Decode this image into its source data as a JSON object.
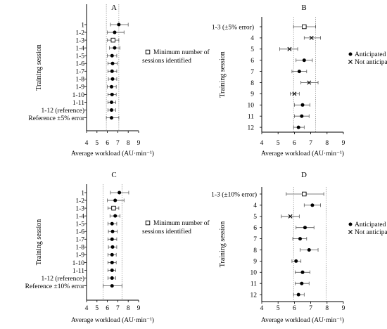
{
  "chart_data": [
    {
      "panel_label": "A",
      "type": "scatter",
      "xlabel": "Average workload (AU·min⁻¹)",
      "ylabel": "Training session",
      "xlim": [
        4,
        9
      ],
      "xticks": [
        "4",
        "5",
        "6",
        "7",
        "8",
        "9"
      ],
      "reference_band": [
        5.9,
        7.1
      ],
      "legend": [
        {
          "marker": "square",
          "label": "Minimum number of sessions identified"
        }
      ],
      "rows": [
        {
          "label": "1",
          "marker": "circle",
          "mean": 7.1,
          "lo": 6.3,
          "hi": 8.0
        },
        {
          "label": "1-2",
          "marker": "circle",
          "mean": 6.7,
          "lo": 6.0,
          "hi": 7.6
        },
        {
          "label": "1-3",
          "marker": "square",
          "mean": 6.55,
          "lo": 6.0,
          "hi": 7.1
        },
        {
          "label": "1-4",
          "marker": "circle",
          "mean": 6.7,
          "lo": 6.2,
          "hi": 7.2
        },
        {
          "label": "1-5",
          "marker": "circle",
          "mean": 6.45,
          "lo": 6.0,
          "hi": 6.9
        },
        {
          "label": "1-6",
          "marker": "circle",
          "mean": 6.5,
          "lo": 6.05,
          "hi": 6.95
        },
        {
          "label": "1-7",
          "marker": "circle",
          "mean": 6.45,
          "lo": 6.05,
          "hi": 6.9
        },
        {
          "label": "1-8",
          "marker": "circle",
          "mean": 6.5,
          "lo": 6.1,
          "hi": 6.9
        },
        {
          "label": "1-9",
          "marker": "circle",
          "mean": 6.4,
          "lo": 6.0,
          "hi": 6.85
        },
        {
          "label": "1-10",
          "marker": "circle",
          "mean": 6.45,
          "lo": 6.05,
          "hi": 6.85
        },
        {
          "label": "1-11",
          "marker": "circle",
          "mean": 6.4,
          "lo": 6.05,
          "hi": 6.8
        },
        {
          "label": "1-12 (reference)",
          "marker": "circle",
          "mean": 6.4,
          "lo": 6.05,
          "hi": 6.8
        },
        {
          "label": "Reference ±5% error",
          "marker": "circle",
          "mean": 6.4,
          "lo": 5.9,
          "hi": 7.1
        }
      ]
    },
    {
      "panel_label": "B",
      "type": "scatter",
      "xlabel": "Average workload (AU·min⁻¹)",
      "ylabel": "Training session",
      "xlim": [
        4,
        9
      ],
      "xticks": [
        "4",
        "5",
        "6",
        "7",
        "8",
        "9"
      ],
      "reference_band": [
        5.95,
        7.3
      ],
      "legend": [
        {
          "marker": "circle",
          "label": "Anticipated"
        },
        {
          "marker": "cross",
          "label": "Not anticipated"
        }
      ],
      "rows": [
        {
          "label": "1-3 (±5% error)",
          "marker": "square",
          "mean": 6.6,
          "lo": 5.95,
          "hi": 7.3
        },
        {
          "label": "4",
          "marker": "cross",
          "mean": 7.05,
          "lo": 6.6,
          "hi": 7.6
        },
        {
          "label": "5",
          "marker": "cross",
          "mean": 5.7,
          "lo": 5.1,
          "hi": 6.2
        },
        {
          "label": "6",
          "marker": "circle",
          "mean": 6.6,
          "lo": 6.1,
          "hi": 7.1
        },
        {
          "label": "7",
          "marker": "circle",
          "mean": 6.3,
          "lo": 5.85,
          "hi": 6.75
        },
        {
          "label": "8",
          "marker": "cross",
          "mean": 6.9,
          "lo": 6.4,
          "hi": 7.45
        },
        {
          "label": "9",
          "marker": "cross",
          "mean": 6.0,
          "lo": 5.75,
          "hi": 6.3
        },
        {
          "label": "10",
          "marker": "circle",
          "mean": 6.5,
          "lo": 6.0,
          "hi": 6.95
        },
        {
          "label": "11",
          "marker": "circle",
          "mean": 6.45,
          "lo": 6.0,
          "hi": 6.9
        },
        {
          "label": "12",
          "marker": "circle",
          "mean": 6.25,
          "lo": 5.95,
          "hi": 6.6
        }
      ]
    },
    {
      "panel_label": "C",
      "type": "scatter",
      "xlabel": "Average workload (AU·min⁻¹)",
      "ylabel": "Training session",
      "xlim": [
        4,
        9
      ],
      "xticks": [
        "4",
        "5",
        "6",
        "7",
        "8",
        "9"
      ],
      "reference_band": [
        5.6,
        7.4
      ],
      "legend": [
        {
          "marker": "square",
          "label": "Minimum number of sessions identified"
        }
      ],
      "rows": [
        {
          "label": "1",
          "marker": "circle",
          "mean": 7.15,
          "lo": 6.3,
          "hi": 8.05
        },
        {
          "label": "1-2",
          "marker": "circle",
          "mean": 6.75,
          "lo": 6.0,
          "hi": 7.6
        },
        {
          "label": "1-3",
          "marker": "square",
          "mean": 6.6,
          "lo": 6.05,
          "hi": 7.1
        },
        {
          "label": "1-4",
          "marker": "circle",
          "mean": 6.75,
          "lo": 6.25,
          "hi": 7.2
        },
        {
          "label": "1-5",
          "marker": "circle",
          "mean": 6.45,
          "lo": 6.05,
          "hi": 6.9
        },
        {
          "label": "1-6",
          "marker": "circle",
          "mean": 6.5,
          "lo": 6.1,
          "hi": 6.95
        },
        {
          "label": "1-7",
          "marker": "circle",
          "mean": 6.45,
          "lo": 6.05,
          "hi": 6.9
        },
        {
          "label": "1-8",
          "marker": "circle",
          "mean": 6.5,
          "lo": 6.1,
          "hi": 6.9
        },
        {
          "label": "1-9",
          "marker": "circle",
          "mean": 6.45,
          "lo": 6.05,
          "hi": 6.85
        },
        {
          "label": "1-10",
          "marker": "circle",
          "mean": 6.45,
          "lo": 6.05,
          "hi": 6.85
        },
        {
          "label": "1-11",
          "marker": "circle",
          "mean": 6.45,
          "lo": 6.05,
          "hi": 6.8
        },
        {
          "label": "1-12 (reference)",
          "marker": "circle",
          "mean": 6.45,
          "lo": 6.05,
          "hi": 6.8
        },
        {
          "label": "Reference ±10% error",
          "marker": "circle",
          "mean": 6.45,
          "lo": 5.6,
          "hi": 7.4
        }
      ]
    },
    {
      "panel_label": "D",
      "type": "scatter",
      "xlabel": "Average workload (AU·min⁻¹)",
      "ylabel": "Training session",
      "xlim": [
        4,
        9
      ],
      "xticks": [
        "4",
        "5",
        "6",
        "7",
        "8",
        "9"
      ],
      "reference_band": [
        5.95,
        7.95
      ],
      "legend": [
        {
          "marker": "circle",
          "label": "Anticipated"
        },
        {
          "marker": "cross",
          "label": "Not anticipated"
        }
      ],
      "rows": [
        {
          "label": "1-3 (±10% error)",
          "marker": "square",
          "mean": 6.6,
          "lo": 5.5,
          "hi": 7.8
        },
        {
          "label": "4",
          "marker": "circle",
          "mean": 7.1,
          "lo": 6.6,
          "hi": 7.6
        },
        {
          "label": "5",
          "marker": "cross",
          "mean": 5.75,
          "lo": 5.2,
          "hi": 6.3
        },
        {
          "label": "6",
          "marker": "circle",
          "mean": 6.65,
          "lo": 6.1,
          "hi": 7.2
        },
        {
          "label": "7",
          "marker": "circle",
          "mean": 6.35,
          "lo": 5.9,
          "hi": 6.75
        },
        {
          "label": "8",
          "marker": "circle",
          "mean": 6.9,
          "lo": 6.35,
          "hi": 7.45
        },
        {
          "label": "9",
          "marker": "circle",
          "mean": 6.1,
          "lo": 5.85,
          "hi": 6.4
        },
        {
          "label": "10",
          "marker": "circle",
          "mean": 6.5,
          "lo": 6.05,
          "hi": 6.95
        },
        {
          "label": "11",
          "marker": "circle",
          "mean": 6.45,
          "lo": 6.05,
          "hi": 6.9
        },
        {
          "label": "12",
          "marker": "circle",
          "mean": 6.25,
          "lo": 5.95,
          "hi": 6.6
        }
      ]
    }
  ]
}
